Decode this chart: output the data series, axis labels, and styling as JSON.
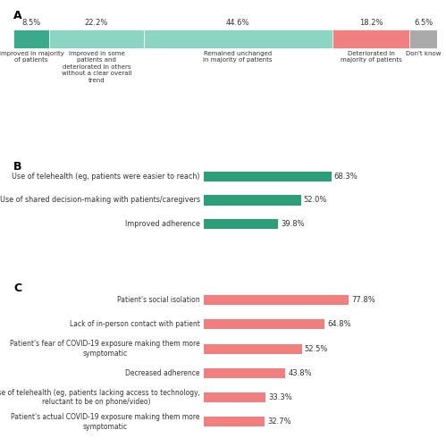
{
  "panel_A": {
    "labels": [
      "Improved in majority\nof patients",
      "Improved in some\npatients and\ndeteriorated in others\nwithout a clear overall\ntrend",
      "Remained unchanged\nin majority of patients",
      "Deteriorated in\nmajority of patients",
      "Don't know"
    ],
    "values": [
      8.5,
      22.2,
      44.6,
      18.2,
      6.5
    ],
    "colors": [
      "#3aaa8a",
      "#8dd5c3",
      "#8dd5c3",
      "#f08080",
      "#aaaaaa"
    ],
    "label_values": [
      "8.5%",
      "22.2%",
      "44.6%",
      "18.2%",
      "6.5%"
    ]
  },
  "panel_B": {
    "labels": [
      "Use of telehealth (eg, patients were easier to reach)",
      "Use of shared decision-making with patients/caregivers",
      "Improved adherence"
    ],
    "values": [
      68.3,
      52.0,
      39.8
    ],
    "color": "#2e9e78",
    "label_values": [
      "68.3%",
      "52.0%",
      "39.8%"
    ]
  },
  "panel_C": {
    "labels": [
      "Patient's social isolation",
      "Lack of in-person contact with patient",
      "Patient's fear of COVID-19 exposure making them more\nsymptomatic",
      "Decreased adherence",
      "Use of telehealth (eg, patients lacking access to technology,\nreluctant to be on phone/video)",
      "Patient's actual COVID-19 exposure making them more\nsymptomatic"
    ],
    "values": [
      77.8,
      64.8,
      52.5,
      43.8,
      33.3,
      32.7
    ],
    "color": "#f08080",
    "label_values": [
      "77.8%",
      "64.8%",
      "52.5%",
      "43.8%",
      "33.3%",
      "32.7%"
    ]
  },
  "background_color": "#ffffff",
  "text_color": "#333333"
}
